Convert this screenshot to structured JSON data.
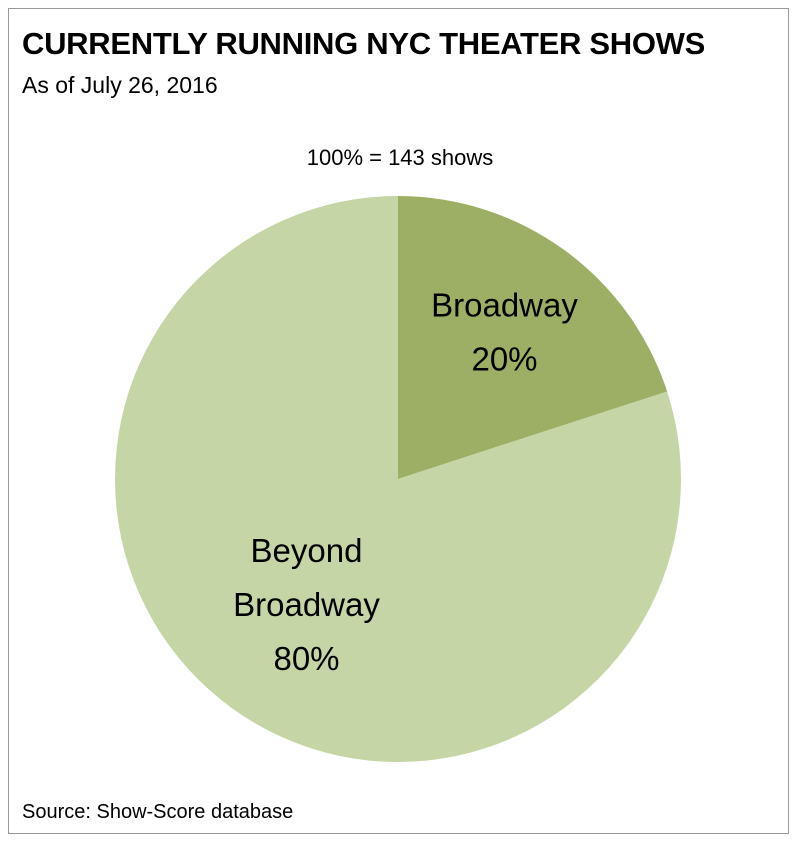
{
  "chart_data": {
    "type": "pie",
    "title": "CURRENTLY RUNNING NYC THEATER SHOWS",
    "subtitle": "As of July 26, 2016",
    "annotation": "100% = 143 shows",
    "source": "Source: Show-Score database",
    "start_angle_deg": 0,
    "direction": "clockwise",
    "slices": [
      {
        "label_lines": [
          "Broadway"
        ],
        "value_label": "20%",
        "value": 20,
        "color": "#9caf65"
      },
      {
        "label_lines": [
          "Beyond",
          "Broadway"
        ],
        "value_label": "80%",
        "value": 80,
        "color": "#c6d5a6"
      }
    ]
  }
}
